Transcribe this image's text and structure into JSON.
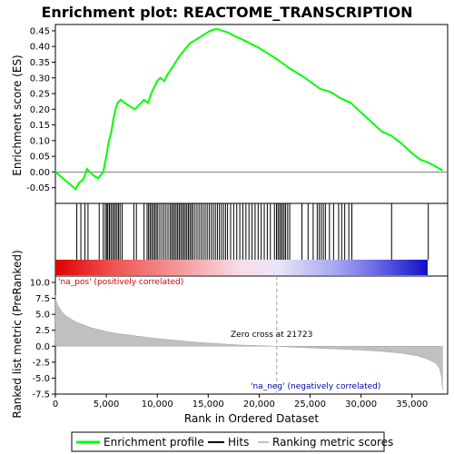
{
  "chart_data": [
    {
      "type": "line",
      "title": "Enrichment plot: REACTOME_TRANSCRIPTION",
      "ylabel": "Enrichment score (ES)",
      "xlim": [
        0,
        38500
      ],
      "ylim": [
        -0.1,
        0.47
      ],
      "yticks": [
        -0.05,
        0.0,
        0.05,
        0.1,
        0.15,
        0.2,
        0.25,
        0.3,
        0.35,
        0.4,
        0.45
      ],
      "ytick_labels": [
        "-0.05",
        "0.00",
        "0.05",
        "0.10",
        "0.15",
        "0.20",
        "0.25",
        "0.30",
        "0.35",
        "0.40",
        "0.45"
      ],
      "grid": false,
      "series": [
        {
          "name": "Enrichment profile",
          "color": "#00ff00",
          "x": [
            0,
            2000,
            2300,
            2700,
            2900,
            3100,
            3400,
            3700,
            4200,
            4700,
            5000,
            5200,
            5500,
            5700,
            5900,
            6100,
            6400,
            6800,
            7300,
            7800,
            8100,
            8400,
            8700,
            9100,
            9400,
            9700,
            10000,
            10300,
            10700,
            11000,
            11400,
            11800,
            12200,
            12700,
            13200,
            13700,
            14200,
            14700,
            15200,
            15600,
            16000,
            16400,
            16900,
            17500,
            18500,
            20000,
            21723,
            23000,
            24500,
            26000,
            27000,
            28000,
            29000,
            30000,
            31000,
            32000,
            33000,
            34000,
            35000,
            35800,
            36200,
            36600,
            37200,
            38000
          ],
          "y": [
            0.0,
            -0.055,
            -0.035,
            -0.025,
            -0.01,
            0.01,
            0.0,
            -0.01,
            -0.02,
            0.0,
            0.05,
            0.09,
            0.13,
            0.17,
            0.2,
            0.22,
            0.23,
            0.22,
            0.21,
            0.2,
            0.21,
            0.22,
            0.23,
            0.22,
            0.25,
            0.27,
            0.29,
            0.3,
            0.29,
            0.31,
            0.33,
            0.35,
            0.37,
            0.39,
            0.41,
            0.42,
            0.43,
            0.44,
            0.45,
            0.455,
            0.455,
            0.45,
            0.445,
            0.435,
            0.42,
            0.395,
            0.36,
            0.33,
            0.3,
            0.265,
            0.255,
            0.235,
            0.22,
            0.19,
            0.16,
            0.13,
            0.115,
            0.09,
            0.06,
            0.04,
            0.035,
            0.03,
            0.02,
            0.005
          ]
        }
      ]
    },
    {
      "type": "hits",
      "name": "Hits",
      "xlim": [
        0,
        38500
      ],
      "positions": [
        2100,
        2500,
        2900,
        3200,
        4300,
        4700,
        4900,
        5050,
        5150,
        5300,
        5450,
        5600,
        5750,
        5900,
        6050,
        6200,
        6350,
        6550,
        7700,
        7950,
        8700,
        9000,
        9150,
        9300,
        9450,
        9600,
        9750,
        9900,
        10050,
        10250,
        10450,
        10650,
        10850,
        11050,
        11250,
        11400,
        11550,
        11700,
        11850,
        12000,
        12150,
        12300,
        12450,
        12600,
        12750,
        12900,
        13050,
        13200,
        13350,
        13500,
        13700,
        13900,
        14100,
        14300,
        14500,
        14700,
        14900,
        15100,
        15300,
        15500,
        15700,
        15900,
        16100,
        16300,
        16500,
        16700,
        16900,
        17200,
        17500,
        17800,
        18100,
        18400,
        18700,
        19000,
        19300,
        19600,
        19900,
        20200,
        20500,
        20800,
        21100,
        21500,
        21700,
        21850,
        22000,
        22150,
        22300,
        22450,
        22600,
        22800,
        23000,
        24200,
        24800,
        25300,
        25700,
        25900,
        26100,
        26300,
        26500,
        26900,
        27300,
        27800,
        28100,
        28400,
        28800,
        29100,
        33000,
        36600
      ]
    },
    {
      "type": "area",
      "ylabel": "Ranked list metric (PreRanked)",
      "xlabel": "Rank in Ordered Dataset",
      "xlim": [
        0,
        38500
      ],
      "ylim": [
        -7.5,
        11
      ],
      "yticks": [
        -7.5,
        -5.0,
        -2.5,
        0.0,
        2.5,
        5.0,
        7.5,
        10.0
      ],
      "ytick_labels": [
        "-7.5",
        "-5.0",
        "-2.5",
        "0.0",
        "2.5",
        "5.0",
        "7.5",
        "10.0"
      ],
      "xticks": [
        0,
        5000,
        10000,
        15000,
        20000,
        25000,
        30000,
        35000
      ],
      "xtick_labels": [
        "0",
        "5,000",
        "10,000",
        "15,000",
        "20,000",
        "25,000",
        "30,000",
        "35,000"
      ],
      "series": [
        {
          "name": "Ranking metric scores",
          "color": "#c0c0c0",
          "x": [
            0,
            100,
            300,
            600,
            1000,
            1500,
            2000,
            2500,
            3000,
            3500,
            4000,
            5000,
            6000,
            7000,
            8000,
            9000,
            10000,
            12000,
            14000,
            16000,
            18000,
            20000,
            21723,
            24000,
            27000,
            30000,
            32000,
            34000,
            35500,
            36500,
            37300,
            37700,
            37900,
            38000
          ],
          "y": [
            8.0,
            7.0,
            6.2,
            5.5,
            4.8,
            4.3,
            3.8,
            3.5,
            3.2,
            2.9,
            2.7,
            2.3,
            2.0,
            1.8,
            1.6,
            1.4,
            1.2,
            0.9,
            0.6,
            0.4,
            0.2,
            0.1,
            0.0,
            -0.2,
            -0.4,
            -0.6,
            -0.8,
            -1.1,
            -1.5,
            -2.0,
            -2.6,
            -3.4,
            -4.8,
            -6.9
          ]
        }
      ],
      "annotations": [
        "'na_pos' (positively correlated)",
        "Zero cross at 21723",
        "'na_neg' (negatively correlated)"
      ],
      "zero_cross": 21723
    }
  ],
  "legend": {
    "placement": "bottom",
    "items": [
      {
        "label": "Enrichment profile",
        "color": "#00ff00"
      },
      {
        "label": "Hits",
        "color": "#000000"
      },
      {
        "label": "Ranking metric scores",
        "color": "#c0c0c0"
      }
    ]
  },
  "colors": {
    "positive": "#cc0000",
    "negative": "#0000cc",
    "pos_text": "#cc0000",
    "neg_text": "#0000aa"
  }
}
